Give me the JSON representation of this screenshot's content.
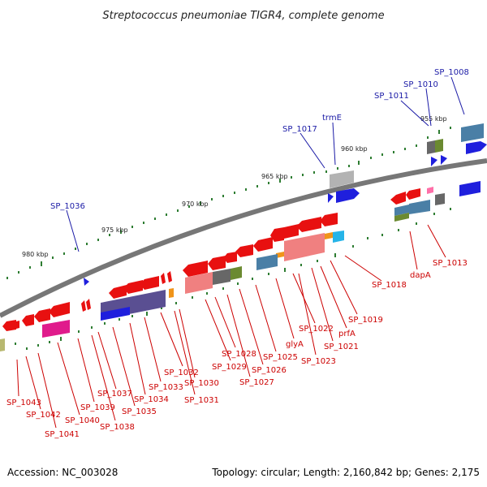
{
  "title": "Streptococcus pneumoniae TIGR4, complete genome",
  "footer": {
    "accession": "Accession: NC_003028",
    "summary": "Topology: circular; Length: 2,160,842 bp; Genes: 2,175"
  },
  "colors": {
    "backbone": "#777777",
    "tick": "#2e7d32",
    "forward_label": "#1a1aa6",
    "reverse_label": "#cc0000"
  },
  "scale_labels": [
    "955 kbp",
    "960 kbp",
    "965 kbp",
    "970 kbp",
    "975 kbp",
    "980 kbp"
  ],
  "upper_labels": [
    "SP_1008",
    "SP_1010",
    "SP_1011",
    "trmE",
    "SP_1017",
    "SP_1036"
  ],
  "lower_labels": [
    "SP_1013",
    "dapA",
    "SP_1018",
    "SP_1019",
    "prfA",
    "SP_1021",
    "SP_1022",
    "SP_1023",
    "glyA",
    "SP_1025",
    "SP_1026",
    "SP_1027",
    "SP_1028",
    "SP_1029",
    "SP_1030",
    "SP_1031",
    "SP_1032",
    "SP_1033",
    "SP_1034",
    "SP_1035",
    "SP_1037",
    "SP_1038",
    "SP_1039",
    "SP_1040",
    "SP_1041",
    "SP_1042",
    "SP_1043"
  ]
}
